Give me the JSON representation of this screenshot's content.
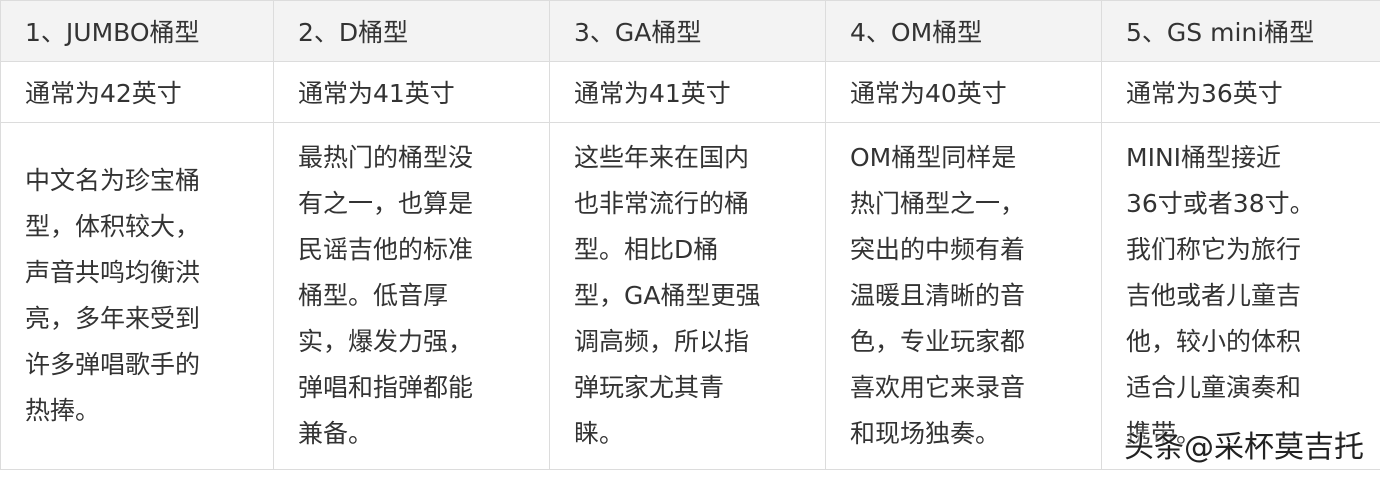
{
  "table": {
    "header": [
      "1、JUMBO桶型",
      "2、D桶型",
      "3、GA桶型",
      "4、OM桶型",
      "5、GS mini桶型"
    ],
    "rows": [
      [
        "通常为42英寸",
        "通常为41英寸",
        "通常为41英寸",
        "通常为40英寸",
        "通常为36英寸"
      ],
      [
        [
          "中文名为珍宝桶",
          "型，体积较大，",
          "声音共鸣均衡洪",
          "亮，多年来受到",
          "许多弹唱歌手的",
          "热捧。"
        ],
        [
          "最热门的桶型没",
          "有之一，也算是",
          "民谣吉他的标准",
          "桶型。低音厚",
          "实，爆发力强，",
          "弹唱和指弹都能",
          "兼备。"
        ],
        [
          "这些年来在国内",
          "也非常流行的桶",
          "型。相比D桶",
          "型，GA桶型更强",
          "调高频，所以指",
          "弹玩家尤其青",
          "睐。"
        ],
        [
          "OM桶型同样是",
          "热门桶型之一，",
          "突出的中频有着",
          "温暖且清晰的音",
          "色，专业玩家都",
          "喜欢用它来录音",
          "和现场独奏。"
        ],
        [
          "MINI桶型接近",
          "36寸或者38寸。",
          "我们称它为旅行",
          "吉他或者儿童吉",
          "他，较小的体积",
          "适合儿童演奏和",
          "携带。"
        ]
      ]
    ]
  },
  "watermark": "头条@采杯莫吉托"
}
